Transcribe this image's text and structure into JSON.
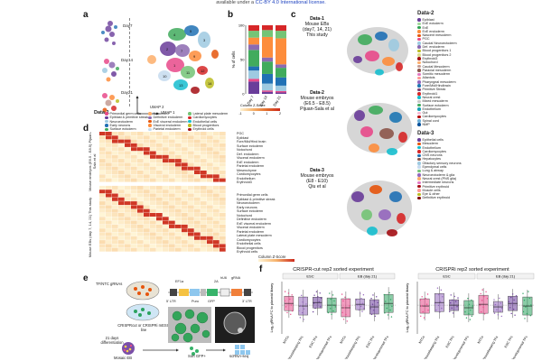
{
  "header": {
    "text": "available under a",
    "license_link": "CC-BY 4.0 International license."
  },
  "panel_labels": [
    "a",
    "b",
    "c",
    "d",
    "e",
    "f"
  ],
  "panel_a": {
    "day_labels": [
      "Day7",
      "Day14",
      "Day21"
    ],
    "data_label": "Data-1",
    "axis_umap1": "UMAP 1",
    "axis_umap2": "UMAP 2",
    "legend": [
      {
        "label": "Primordial germ cells",
        "color": "#e84a8a"
      },
      {
        "label": "Epiblast & primitive streak",
        "color": "#6a3d9a"
      },
      {
        "label": "Neuroectoderm",
        "color": "#9ecae1"
      },
      {
        "label": "Early neurons",
        "color": "#2171b5"
      },
      {
        "label": "Surface ectoderm",
        "color": "#41ab5d"
      },
      {
        "label": "Notochord",
        "color": "#fdae6b"
      },
      {
        "label": "Definitive endoderm",
        "color": "#8c6bb1"
      },
      {
        "label": "ExE visceral endoderm",
        "color": "#e6550d"
      },
      {
        "label": "Visceral endoderm",
        "color": "#fd8d3c"
      },
      {
        "label": "Parietal endoderm",
        "color": "#c6dbef"
      },
      {
        "label": "Lateral plate mesoderm",
        "color": "#74c476"
      },
      {
        "label": "Cardiomyocytes",
        "color": "#d62728"
      },
      {
        "label": "Endothelial cells",
        "color": "#17becf"
      },
      {
        "label": "Blood progenitors",
        "color": "#bcbd22"
      },
      {
        "label": "Erythroid cells",
        "color": "#a50f15"
      }
    ]
  },
  "panel_b": {
    "ylabel": "% of cells",
    "yticks": [
      "100",
      "50",
      "0"
    ],
    "xticks": [
      "Day 7",
      "Day 14",
      "Day 21"
    ],
    "colorbar_title": "Column Z-Score",
    "colorbar_ticks": [
      "-1",
      "0",
      "1",
      "2"
    ]
  },
  "chart_data": [
    {
      "type": "bar",
      "title": "",
      "xlabel": "",
      "ylabel": "% of cells",
      "ylim": [
        0,
        100
      ],
      "categories": [
        "Day 7",
        "Day 14",
        "Day 21"
      ],
      "series": [
        {
          "color": "#6a3d9a",
          "values": [
            18,
            3,
            2
          ]
        },
        {
          "color": "#e84a8a",
          "values": [
            4,
            2,
            2
          ]
        },
        {
          "color": "#9ecae1",
          "values": [
            12,
            10,
            8
          ]
        },
        {
          "color": "#2171b5",
          "values": [
            6,
            14,
            12
          ]
        },
        {
          "color": "#41ab5d",
          "values": [
            24,
            18,
            14
          ]
        },
        {
          "color": "#8c6bb1",
          "values": [
            8,
            6,
            5
          ]
        },
        {
          "color": "#fd8d3c",
          "values": [
            10,
            30,
            38
          ]
        },
        {
          "color": "#74c476",
          "values": [
            10,
            10,
            11
          ]
        },
        {
          "color": "#d62728",
          "values": [
            8,
            7,
            8
          ]
        }
      ]
    },
    {
      "type": "heatmap",
      "rows": 30,
      "cols": 20,
      "colorbar_title": "Column Z-Score",
      "colorbar_ticks": [
        "-1",
        "0",
        "1",
        "2"
      ]
    }
  ],
  "panel_c": {
    "data1": {
      "title": "Data-1",
      "sub1": "Mouse EBs",
      "sub2": "(day7, 14, 21)",
      "sub3": "This study"
    },
    "data2": {
      "title": "Data-2",
      "sub1": "Mouse embryos",
      "sub2": "(E6.5 - E8.5)",
      "sub3": "Pijuan-Sala et al"
    },
    "data3": {
      "title": "Data-3",
      "sub1": "Mouse embryos",
      "sub2": "(E8 - E10)",
      "sub3": "Qiu et al"
    },
    "legend_data2_title": "Data-2",
    "legend_data2": [
      {
        "label": "Epiblast",
        "color": "#6a3d9a"
      },
      {
        "label": "ExE ectoderm",
        "color": "#a1d99b"
      },
      {
        "label": "ExE",
        "color": "#31a354"
      },
      {
        "label": "ExE endoderm",
        "color": "#fd8d3c"
      },
      {
        "label": "Nascent mesoderm",
        "color": "#e6550d"
      },
      {
        "label": "PGC",
        "color": "#e84a8a"
      },
      {
        "label": "Caudal Neuroectoderm",
        "color": "#9ecae1"
      },
      {
        "label": "Def. endoderm",
        "color": "#8c6bb1"
      },
      {
        "label": "Blood progenitors 1",
        "color": "#bcbd22"
      },
      {
        "label": "Blood progenitors 2",
        "color": "#dbdb8d"
      },
      {
        "label": "Erythroid3",
        "color": "#a50f15"
      },
      {
        "label": "Notochord",
        "color": "#fdae6b"
      },
      {
        "label": "Caudal Mesoderm",
        "color": "#c49c94"
      },
      {
        "label": "Paraxial mesoderm",
        "color": "#8c564b"
      },
      {
        "label": "Somitic mesoderm",
        "color": "#e377c2"
      },
      {
        "label": "Allantois",
        "color": "#ff9896"
      },
      {
        "label": "Pharyngeal mesoderm",
        "color": "#9467bd"
      },
      {
        "label": "Fore/Mid/Hindbrain",
        "color": "#1f77b4"
      },
      {
        "label": "Primitive Streak",
        "color": "#7b4173"
      },
      {
        "label": "Erythroid1",
        "color": "#d62728"
      },
      {
        "label": "Neural crest",
        "color": "#17becf"
      },
      {
        "label": "Mixed mesoderm",
        "color": "#c7c7c7"
      },
      {
        "label": "Surface ectoderm",
        "color": "#41ab5d"
      },
      {
        "label": "Endothelium",
        "color": "#17a2b8"
      },
      {
        "label": "Gut",
        "color": "#f7b6d2"
      },
      {
        "label": "Cardiomyocytes",
        "color": "#b30000"
      },
      {
        "label": "Spinal cord",
        "color": "#6baed6"
      },
      {
        "label": "NMP",
        "color": "#08519c"
      }
    ],
    "legend_data3_title": "Data-3",
    "legend_data3": [
      {
        "label": "Epithelial cells",
        "color": "#6a3d9a"
      },
      {
        "label": "Mesoderm",
        "color": "#e6550d"
      },
      {
        "label": "Endothelium",
        "color": "#17becf"
      },
      {
        "label": "Cardiomyocytes",
        "color": "#d62728"
      },
      {
        "label": "CNS neurons",
        "color": "#2171b5"
      },
      {
        "label": "Hepatocytes",
        "color": "#8c564b"
      },
      {
        "label": "Olfactory sensory neurons",
        "color": "#9ecae1"
      },
      {
        "label": "Ependymal cells",
        "color": "#c6dbef"
      },
      {
        "label": "Lung & airway",
        "color": "#74c476"
      },
      {
        "label": "Neuroectoderm & glia",
        "color": "#9467bd"
      },
      {
        "label": "Neural crest (PNS glia)",
        "color": "#fdae6b"
      },
      {
        "label": "Intermediate neurons",
        "color": "#e377c2"
      },
      {
        "label": "Primitive erythroid",
        "color": "#a50f15"
      },
      {
        "label": "Muscle cells",
        "color": "#ff9896"
      },
      {
        "label": "Eye & other",
        "color": "#bcbd22"
      },
      {
        "label": "Definitive erythroid",
        "color": "#7f0000"
      }
    ]
  },
  "panel_d": {
    "group1": "Mouse embryos (E6.5 - E8.5) Pijuan-Sala et al",
    "group2": "Mouse EBs (day 7, 14, 21) This study",
    "rows_top": [
      "PGC",
      "Epiblast",
      "Fore/Mid/Hind brain",
      "Surface ectoderm",
      "Notochord",
      "Def. endoderm",
      "Visceral endoderm",
      "ExE endoderm",
      "Parietal endoderm",
      "Mesenchyme",
      "Cardiomyocytes",
      "Endothelium",
      "Erythroid3"
    ],
    "rows_bottom": [
      "Primordial germ cells",
      "Epiblast & primitive streak",
      "Neuroectoderm",
      "Early neurons",
      "Surface ectoderm",
      "Notochord",
      "Definitive endoderm",
      "ExE visceral endoderm",
      "Visceral endoderm",
      "Parietal endoderm",
      "Lateral plate mesoderm",
      "Cardiomyocytes",
      "Endothelial cells",
      "Blood progenitors",
      "Erythroid cells"
    ],
    "colorbar_title": "Column Z-Score"
  },
  "panel_e": {
    "gRNA_label": "TF/NTC gRNAs",
    "line_label": "CRISPRcut or CRISPRi mESC line",
    "diff_label": "21 days differentiation",
    "eb_label": "Mosaic EB",
    "sort_label": "Sort GFP+",
    "scrna_label": "scRNA-seq",
    "construct": [
      "5' LTR",
      "EF1a",
      "Puro",
      "2A",
      "GFP",
      "hU6",
      "gRNA",
      "3' LTR"
    ]
  },
  "panel_f": {
    "left_title": "CRISPR-cut rep2 sorted experiment",
    "right_title": "CRISPRi rep2 sorted experiment",
    "ylabel": "Log₂ gRNA FC to plasmid library",
    "esc": "ESC",
    "eb": "EB (day 21)",
    "groups": [
      "NTCs",
      "Housekeeping TFs",
      "ESC TFs",
      "Developmental TFs"
    ]
  }
}
